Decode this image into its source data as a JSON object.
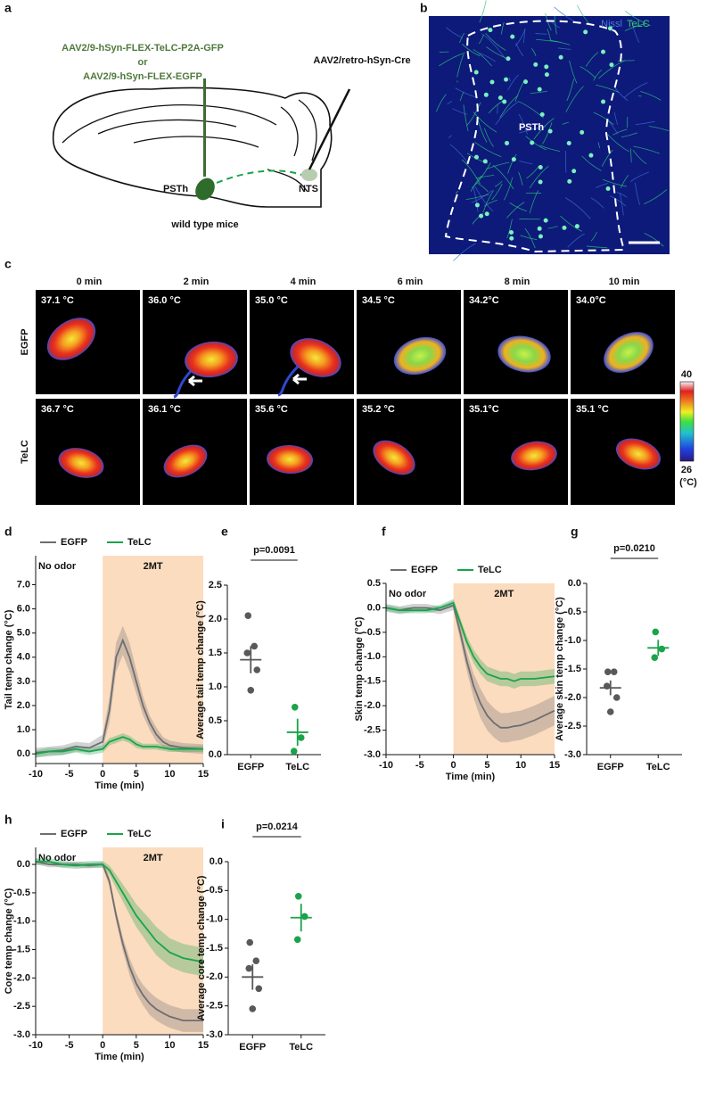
{
  "figure": {
    "panel_a": {
      "label": "a",
      "virus_1": "AAV2/9-hSyn-FLEX-TeLC-P2A-GFP",
      "or": "or",
      "virus_2": "AAV2/9-hSyn-FLEX-EGFP",
      "retro": "AAV2/retro-hSyn-Cre",
      "region_1": "PSTh",
      "region_2": "NTS",
      "caption": "wild type mice"
    },
    "panel_b": {
      "label": "b",
      "stain_1": "Nissl",
      "stain_2": "TeLC",
      "region": "PSTh"
    },
    "panel_c": {
      "label": "c",
      "times": [
        "0 min",
        "2 min",
        "4 min",
        "6 min",
        "8 min",
        "10 min"
      ],
      "rows": [
        {
          "name": "EGFP",
          "temps": [
            "37.1 °C",
            "36.0 °C",
            "35.0 °C",
            "34.5 °C",
            "34.2°C",
            "34.0°C"
          ]
        },
        {
          "name": "TeLC",
          "temps": [
            "36.7 °C",
            "36.1 °C",
            "35.6 °C",
            "35.2 °C",
            "35.1°C",
            "35.1 °C"
          ]
        }
      ],
      "colorbar": {
        "range": [
          26,
          40
        ],
        "unit": "(°C)"
      }
    }
  },
  "chart_data": [
    {
      "type": "line",
      "panel": "d",
      "xlabel": "Time (min)",
      "ylabel": "Tail temp change (°C)",
      "x": [
        -10,
        -8,
        -6,
        -4,
        -2,
        0,
        1,
        2,
        3,
        4,
        5,
        6,
        7,
        8,
        9,
        10,
        12,
        15
      ],
      "xlim": [
        -10,
        15
      ],
      "xticks": [
        -10,
        -5,
        0,
        5,
        10,
        15
      ],
      "ylim": [
        -0.4,
        8.2
      ],
      "yticks": [
        {
          "value": 0,
          "label": "0.0"
        },
        {
          "value": 1,
          "label": "1.0"
        },
        {
          "value": 2,
          "label": "2.0"
        },
        {
          "value": 3,
          "label": "3.0"
        },
        {
          "value": 4,
          "label": "4.0"
        },
        {
          "value": 5,
          "label": "5.0"
        },
        {
          "value": 6,
          "label": "6.0"
        },
        {
          "value": 7,
          "label": "7.0"
        }
      ],
      "shaded": [
        0,
        15
      ],
      "annotations": [
        "No odor",
        "2MT"
      ],
      "series": [
        {
          "name": "EGFP",
          "color": "#6d6e71",
          "values": [
            0.05,
            0.1,
            0.15,
            0.3,
            0.25,
            0.5,
            1.8,
            4.0,
            4.7,
            4.0,
            3.0,
            2.0,
            1.3,
            0.8,
            0.5,
            0.35,
            0.25,
            0.2
          ],
          "errors": [
            0.2,
            0.2,
            0.2,
            0.2,
            0.2,
            0.3,
            0.5,
            0.6,
            0.6,
            0.6,
            0.5,
            0.4,
            0.3,
            0.3,
            0.2,
            0.2,
            0.2,
            0.2
          ]
        },
        {
          "name": "TeLC",
          "color": "#1aa34a",
          "values": [
            0.0,
            0.1,
            0.1,
            0.2,
            0.1,
            0.2,
            0.5,
            0.6,
            0.7,
            0.6,
            0.4,
            0.3,
            0.3,
            0.3,
            0.25,
            0.2,
            0.2,
            0.2
          ],
          "errors": [
            0.15,
            0.15,
            0.15,
            0.15,
            0.15,
            0.15,
            0.15,
            0.15,
            0.15,
            0.15,
            0.15,
            0.12,
            0.12,
            0.12,
            0.12,
            0.12,
            0.12,
            0.12
          ]
        }
      ]
    },
    {
      "type": "dot",
      "panel": "e",
      "ylabel": "Average tail temp change (°C)",
      "categories": [
        "EGFP",
        "TeLC"
      ],
      "colors": [
        "#58595b",
        "#1aa34a"
      ],
      "points": [
        [
          2.05,
          1.6,
          1.5,
          1.25,
          0.95
        ],
        [
          0.7,
          0.25,
          0.05
        ]
      ],
      "means": [
        1.4,
        0.33
      ],
      "sems": [
        0.2,
        0.2
      ],
      "ylim": [
        0,
        2.5
      ],
      "yticks": [
        {
          "value": 0,
          "label": "0.0"
        },
        0.5,
        {
          "value": 1,
          "label": "1.0"
        },
        1.5,
        {
          "value": 2,
          "label": "2.0"
        },
        2.5
      ],
      "pvalue": "p=0.0091"
    },
    {
      "type": "line",
      "panel": "f",
      "xlabel": "Time (min)",
      "ylabel": "Skin temp change (°C)",
      "x": [
        -10,
        -8,
        -6,
        -4,
        -2,
        0,
        1,
        2,
        3,
        4,
        5,
        6,
        7,
        8,
        9,
        10,
        12,
        15
      ],
      "xlim": [
        -10,
        15
      ],
      "xticks": [
        -10,
        -5,
        0,
        5,
        10,
        15
      ],
      "ylim": [
        -3.0,
        0.5
      ],
      "yticks": [
        0.5,
        {
          "value": 0,
          "label": "0.0"
        },
        -0.5,
        {
          "value": -1,
          "label": "-1.0"
        },
        -1.5,
        {
          "value": -2,
          "label": "-2.0"
        },
        -2.5,
        {
          "value": -3,
          "label": "-3.0"
        }
      ],
      "shaded": [
        0,
        15
      ],
      "annotations": [
        "No odor",
        "2MT"
      ],
      "series": [
        {
          "name": "EGFP",
          "color": "#6d6e71",
          "values": [
            0.0,
            -0.05,
            0.0,
            0.0,
            -0.05,
            0.05,
            -0.5,
            -1.1,
            -1.6,
            -1.95,
            -2.2,
            -2.35,
            -2.45,
            -2.45,
            -2.42,
            -2.4,
            -2.3,
            -2.1
          ],
          "errors": [
            0.08,
            0.08,
            0.08,
            0.08,
            0.08,
            0.1,
            0.15,
            0.2,
            0.25,
            0.3,
            0.3,
            0.3,
            0.3,
            0.3,
            0.3,
            0.3,
            0.3,
            0.3
          ]
        },
        {
          "name": "TeLC",
          "color": "#1aa34a",
          "values": [
            0.0,
            -0.05,
            -0.05,
            -0.05,
            0.0,
            0.1,
            -0.3,
            -0.7,
            -1.0,
            -1.2,
            -1.35,
            -1.4,
            -1.45,
            -1.45,
            -1.5,
            -1.45,
            -1.45,
            -1.4
          ],
          "errors": [
            0.06,
            0.06,
            0.06,
            0.06,
            0.06,
            0.08,
            0.1,
            0.12,
            0.14,
            0.15,
            0.15,
            0.15,
            0.15,
            0.15,
            0.15,
            0.15,
            0.15,
            0.15
          ]
        }
      ]
    },
    {
      "type": "dot",
      "panel": "g",
      "ylabel": "Average skin temp change (°C)",
      "categories": [
        "EGFP",
        "TeLC"
      ],
      "colors": [
        "#58595b",
        "#1aa34a"
      ],
      "points": [
        [
          -1.55,
          -1.55,
          -1.8,
          -2.0,
          -2.25
        ],
        [
          -0.85,
          -1.15,
          -1.3
        ]
      ],
      "means": [
        -1.83,
        -1.13
      ],
      "sems": [
        0.13,
        0.14
      ],
      "ylim": [
        -3.0,
        0.0
      ],
      "yticks": [
        {
          "value": 0,
          "label": "0.0"
        },
        -0.5,
        {
          "value": -1,
          "label": "-1.0"
        },
        -1.5,
        {
          "value": -2,
          "label": "-2.0"
        },
        -2.5,
        {
          "value": -3,
          "label": "-3.0"
        }
      ],
      "pvalue": "p=0.0210"
    },
    {
      "type": "line",
      "panel": "h",
      "xlabel": "Time (min)",
      "ylabel": "Core temp change (°C)",
      "x": [
        -10,
        -8,
        -6,
        -4,
        -2,
        0,
        1,
        2,
        3,
        4,
        5,
        6,
        7,
        8,
        9,
        10,
        12,
        15
      ],
      "xlim": [
        -10,
        15
      ],
      "xticks": [
        -10,
        -5,
        0,
        5,
        10,
        15
      ],
      "ylim": [
        -3.0,
        0.3
      ],
      "yticks": [
        {
          "value": 0,
          "label": "0.0"
        },
        -0.5,
        {
          "value": -1,
          "label": "-1.0"
        },
        -1.5,
        {
          "value": -2,
          "label": "-2.0"
        },
        -2.5,
        {
          "value": -3,
          "label": "-3.0"
        }
      ],
      "shaded": [
        0,
        15
      ],
      "annotations": [
        "No odor",
        "2MT"
      ],
      "series": [
        {
          "name": "EGFP",
          "color": "#6d6e71",
          "values": [
            0.05,
            0.0,
            0.0,
            0.0,
            -0.02,
            0.0,
            -0.3,
            -0.9,
            -1.4,
            -1.8,
            -2.1,
            -2.3,
            -2.45,
            -2.55,
            -2.62,
            -2.68,
            -2.75,
            -2.75
          ],
          "errors": [
            0.05,
            0.05,
            0.05,
            0.05,
            0.05,
            0.05,
            0.08,
            0.1,
            0.12,
            0.15,
            0.17,
            0.18,
            0.2,
            0.2,
            0.2,
            0.2,
            0.2,
            0.2
          ]
        },
        {
          "name": "TeLC",
          "color": "#1aa34a",
          "values": [
            0.05,
            0.05,
            0.0,
            -0.02,
            0.0,
            0.0,
            -0.1,
            -0.3,
            -0.5,
            -0.7,
            -0.9,
            -1.05,
            -1.2,
            -1.35,
            -1.45,
            -1.55,
            -1.65,
            -1.72
          ],
          "errors": [
            0.06,
            0.06,
            0.06,
            0.06,
            0.06,
            0.06,
            0.08,
            0.12,
            0.15,
            0.18,
            0.2,
            0.22,
            0.24,
            0.25,
            0.25,
            0.25,
            0.25,
            0.25
          ]
        }
      ]
    },
    {
      "type": "dot",
      "panel": "i",
      "ylabel": "Average core temp change (°C)",
      "categories": [
        "EGFP",
        "TeLC"
      ],
      "colors": [
        "#58595b",
        "#1aa34a"
      ],
      "points": [
        [
          -1.4,
          -1.72,
          -1.85,
          -2.2,
          -2.55
        ],
        [
          -0.6,
          -0.95,
          -1.35
        ]
      ],
      "means": [
        -2.0,
        -0.97
      ],
      "sems": [
        0.22,
        0.24
      ],
      "ylim": [
        -3.0,
        0.0
      ],
      "yticks": [
        {
          "value": 0,
          "label": "0.0"
        },
        -0.5,
        {
          "value": -1,
          "label": "-1.0"
        },
        -1.5,
        {
          "value": -2,
          "label": "-2.0"
        },
        -2.5,
        {
          "value": -3,
          "label": "-3.0"
        }
      ],
      "pvalue": "p=0.0214"
    }
  ]
}
